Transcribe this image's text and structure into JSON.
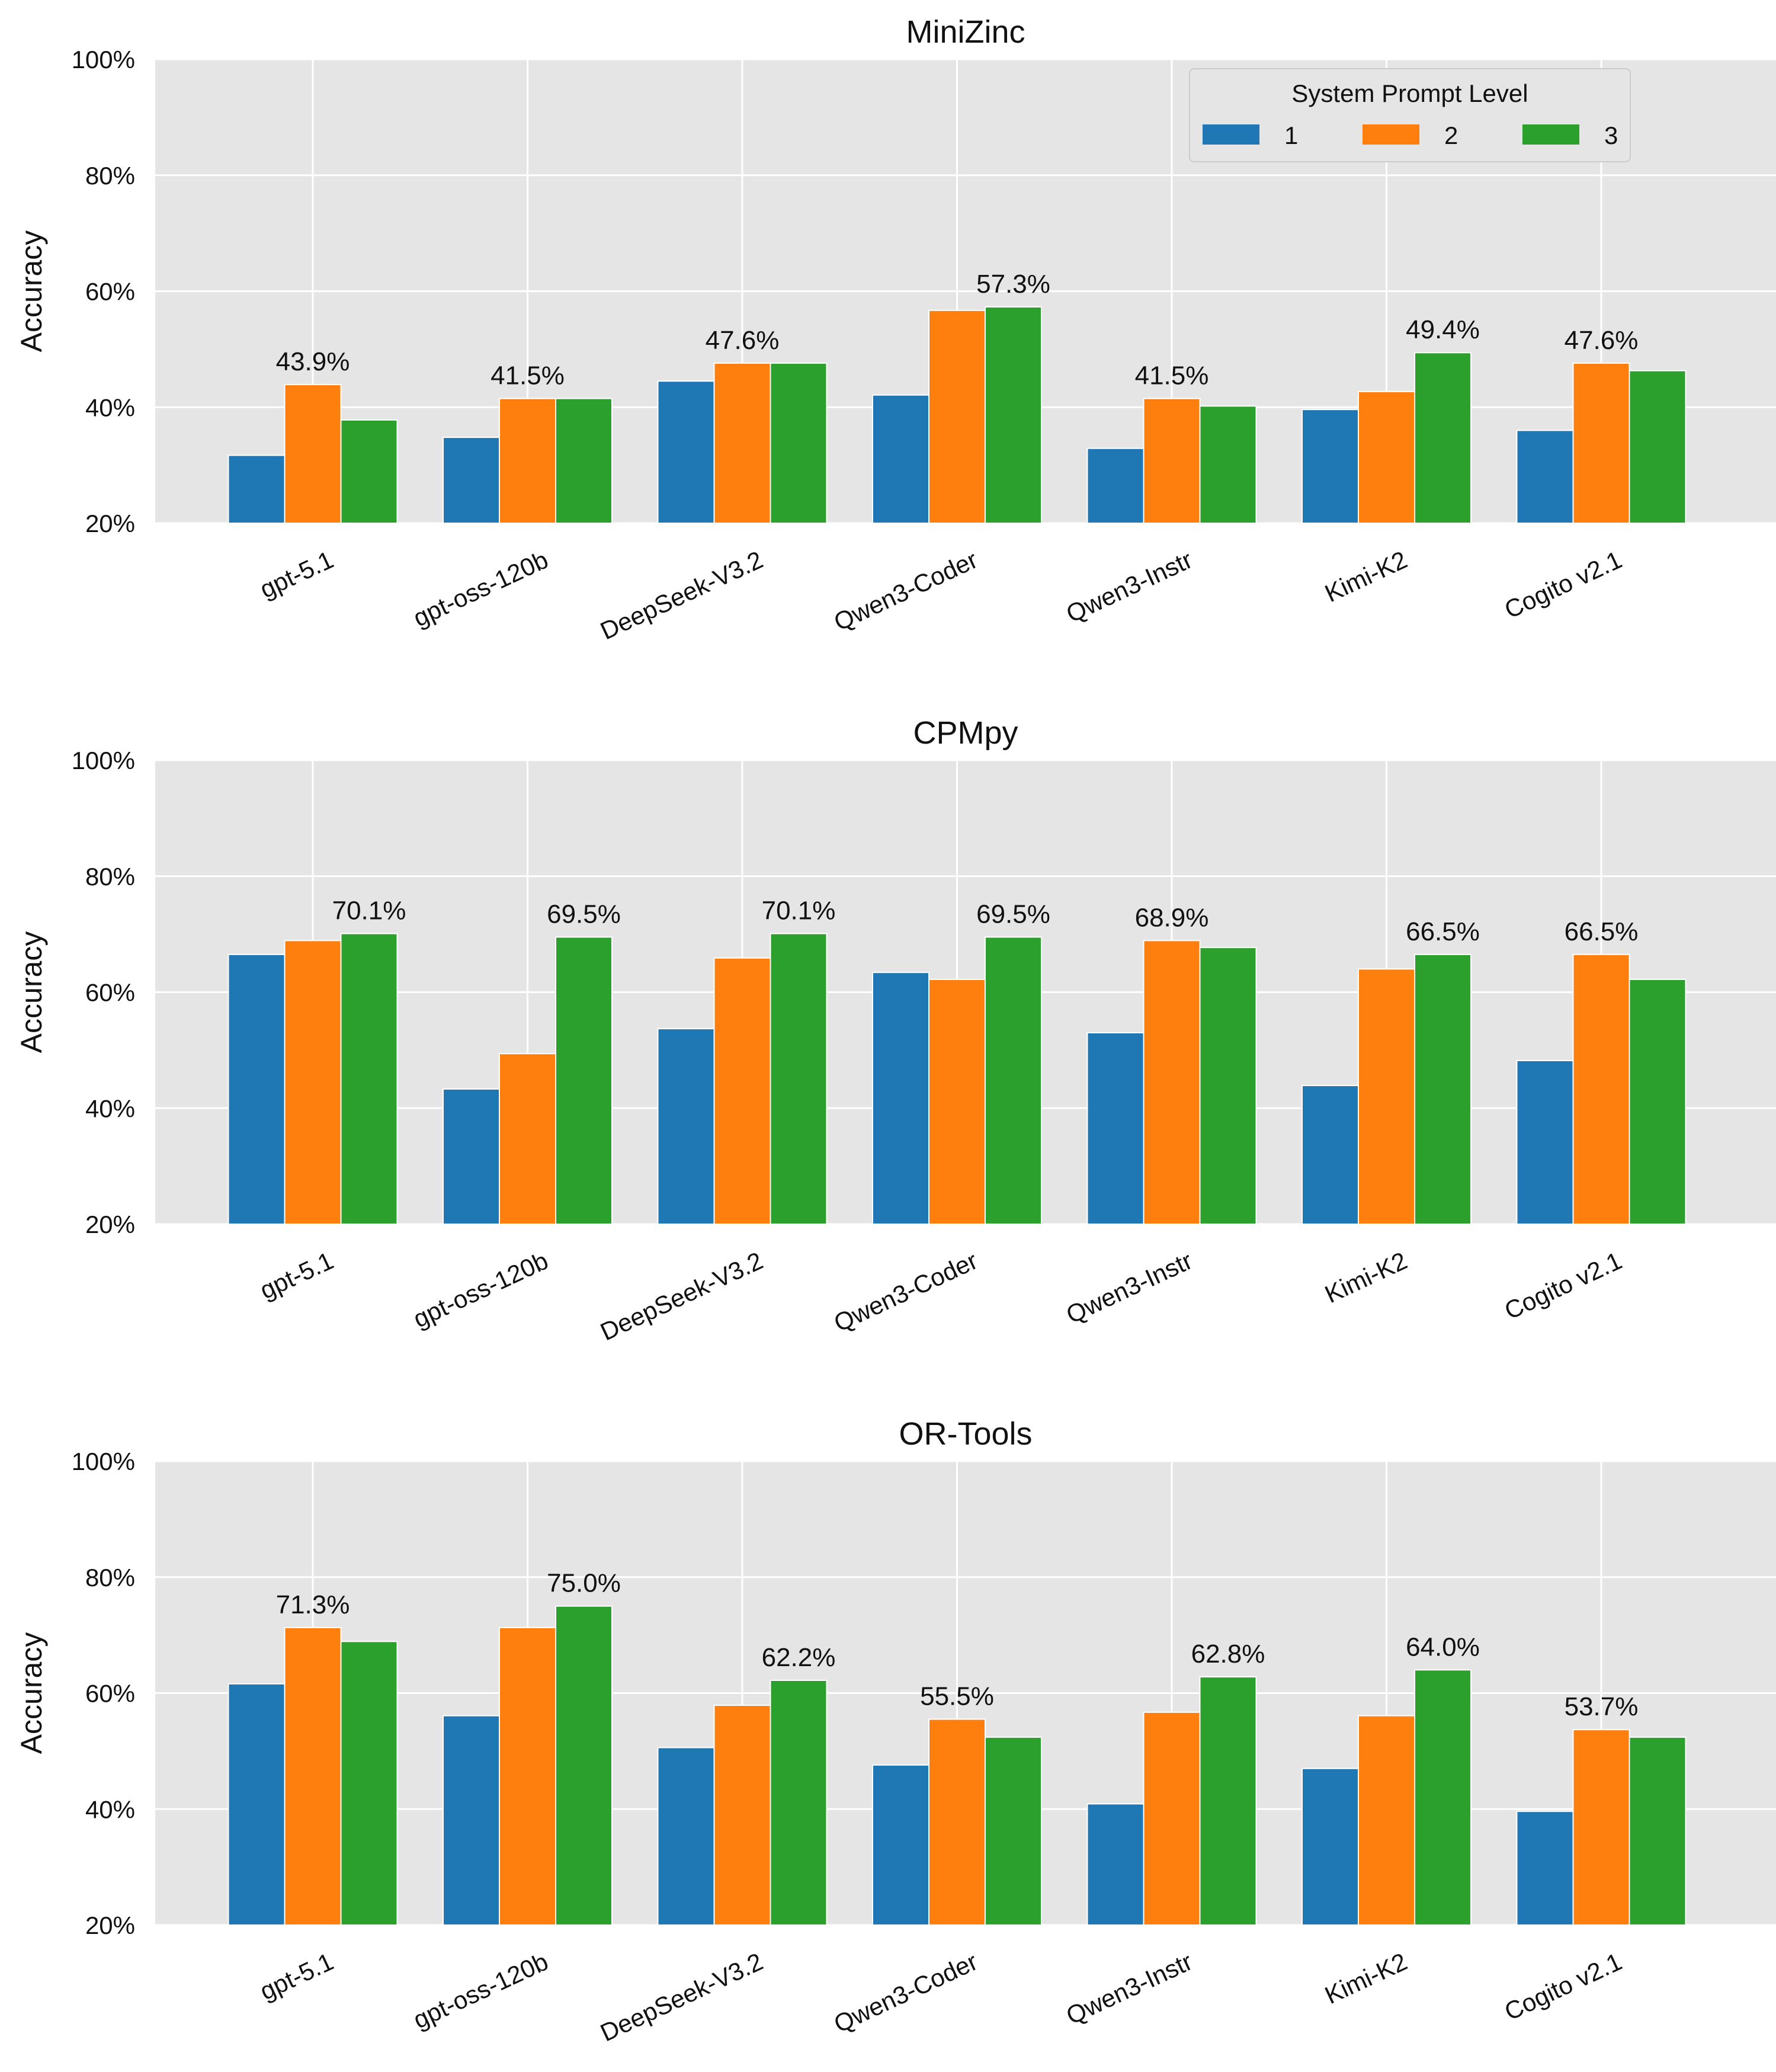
{
  "chart_data": [
    {
      "type": "bar",
      "title": "MiniZinc",
      "xlabel": "",
      "ylabel": "Accuracy",
      "ylim": [
        20,
        100
      ],
      "yticks": [
        "20%",
        "40%",
        "60%",
        "80%",
        "100%"
      ],
      "grid": true,
      "categories": [
        "gpt-5.1",
        "gpt-oss-120b",
        "DeepSeek-V3.2",
        "Qwen3-Coder",
        "Qwen3-Instr",
        "Kimi-K2",
        "Cogito v2.1"
      ],
      "series": [
        {
          "name": "1",
          "color": "#1f77b4",
          "values": [
            31.7,
            34.8,
            44.5,
            42.1,
            32.9,
            39.6,
            36.0
          ]
        },
        {
          "name": "2",
          "color": "#ff7f0e",
          "values": [
            43.9,
            41.5,
            47.6,
            56.7,
            41.5,
            42.7,
            47.6
          ]
        },
        {
          "name": "3",
          "color": "#2ca02c",
          "values": [
            37.8,
            41.5,
            47.6,
            57.3,
            40.2,
            49.4,
            46.3
          ]
        }
      ],
      "data_labels": [
        "43.9%",
        "41.5%",
        "47.6%",
        "57.3%",
        "41.5%",
        "49.4%",
        "47.6%"
      ],
      "legend": {
        "title": "System Prompt Level",
        "position": "top-right",
        "entries": [
          "1",
          "2",
          "3"
        ]
      }
    },
    {
      "type": "bar",
      "title": "CPMpy",
      "xlabel": "",
      "ylabel": "Accuracy",
      "ylim": [
        20,
        100
      ],
      "yticks": [
        "20%",
        "40%",
        "60%",
        "80%",
        "100%"
      ],
      "grid": true,
      "categories": [
        "gpt-5.1",
        "gpt-oss-120b",
        "DeepSeek-V3.2",
        "Qwen3-Coder",
        "Qwen3-Instr",
        "Kimi-K2",
        "Cogito v2.1"
      ],
      "series": [
        {
          "name": "1",
          "color": "#1f77b4",
          "values": [
            66.5,
            43.3,
            53.7,
            63.4,
            53.0,
            43.9,
            48.2
          ]
        },
        {
          "name": "2",
          "color": "#ff7f0e",
          "values": [
            68.9,
            49.4,
            65.9,
            62.2,
            68.9,
            64.0,
            66.5
          ]
        },
        {
          "name": "3",
          "color": "#2ca02c",
          "values": [
            70.1,
            69.5,
            70.1,
            69.5,
            67.7,
            66.5,
            62.2
          ]
        }
      ],
      "data_labels": [
        "70.1%",
        "69.5%",
        "70.1%",
        "69.5%",
        "68.9%",
        "66.5%",
        "66.5%"
      ]
    },
    {
      "type": "bar",
      "title": "OR-Tools",
      "xlabel": "",
      "ylabel": "Accuracy",
      "ylim": [
        20,
        100
      ],
      "yticks": [
        "20%",
        "40%",
        "60%",
        "80%",
        "100%"
      ],
      "grid": true,
      "categories": [
        "gpt-5.1",
        "gpt-oss-120b",
        "DeepSeek-V3.2",
        "Qwen3-Coder",
        "Qwen3-Instr",
        "Kimi-K2",
        "Cogito v2.1"
      ],
      "series": [
        {
          "name": "1",
          "color": "#1f77b4",
          "values": [
            61.6,
            56.1,
            50.6,
            47.6,
            40.9,
            47.0,
            39.6
          ]
        },
        {
          "name": "2",
          "color": "#ff7f0e",
          "values": [
            71.3,
            71.3,
            57.9,
            55.5,
            56.7,
            56.1,
            53.7
          ]
        },
        {
          "name": "3",
          "color": "#2ca02c",
          "values": [
            68.9,
            75.0,
            62.2,
            52.4,
            62.8,
            64.0,
            52.4
          ]
        }
      ],
      "data_labels": [
        "71.3%",
        "75.0%",
        "62.2%",
        "55.5%",
        "62.8%",
        "64.0%",
        "53.7%"
      ]
    }
  ]
}
